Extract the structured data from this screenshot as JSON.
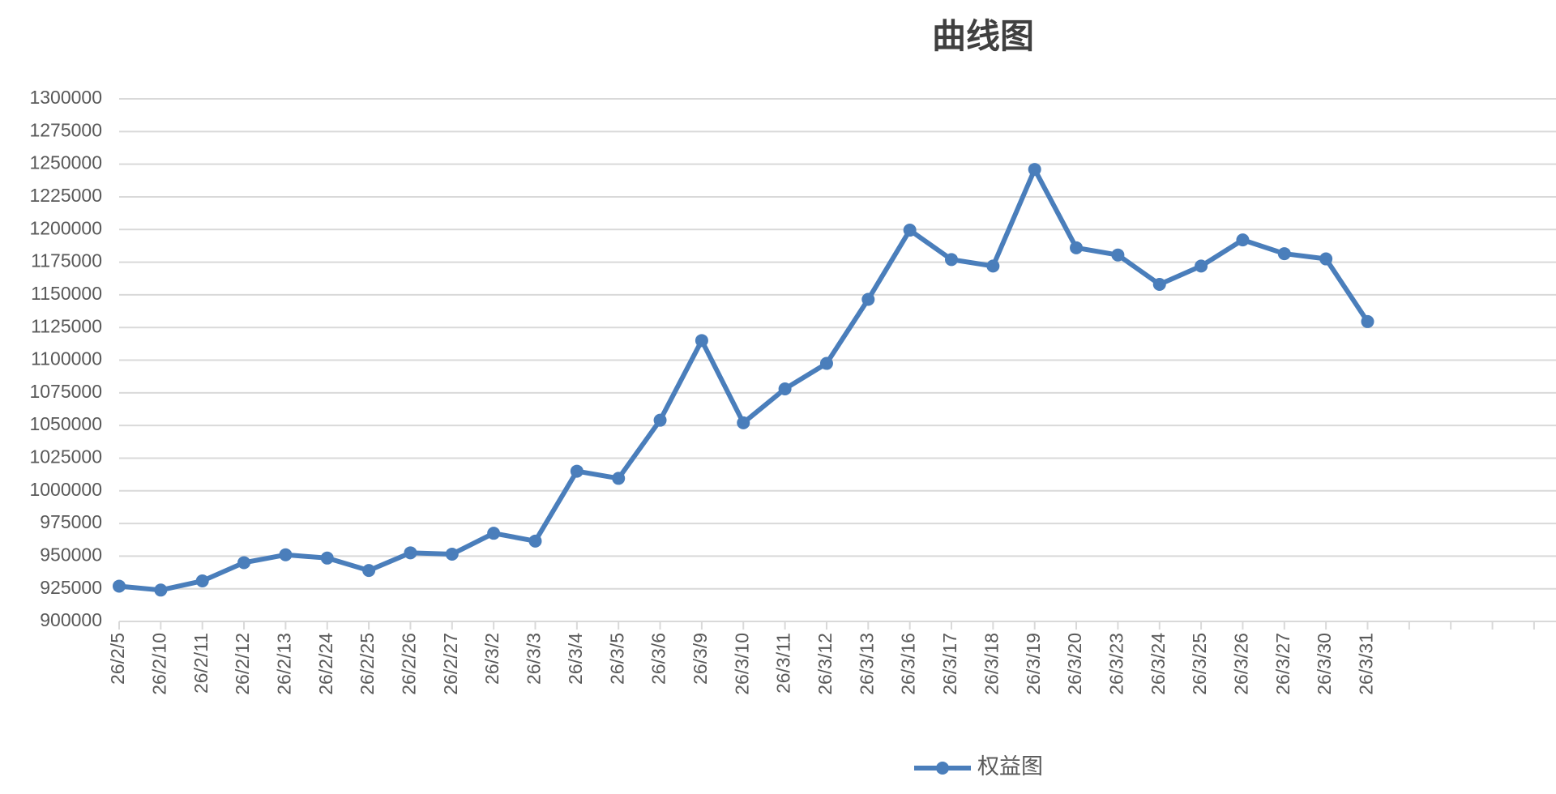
{
  "chart_data": {
    "type": "line",
    "title": "曲线图",
    "categories": [
      "26/2/5",
      "26/2/10",
      "26/2/11",
      "26/2/12",
      "26/2/13",
      "26/2/24",
      "26/2/25",
      "26/2/26",
      "26/2/27",
      "26/3/2",
      "26/3/3",
      "26/3/4",
      "26/3/5",
      "26/3/6",
      "26/3/9",
      "26/3/10",
      "26/3/11",
      "26/3/12",
      "26/3/13",
      "26/3/16",
      "26/3/17",
      "26/3/18",
      "26/3/19",
      "26/3/20",
      "26/3/23",
      "26/3/24",
      "26/3/25",
      "26/3/26",
      "26/3/27",
      "26/3/30",
      "26/3/31",
      null,
      null,
      null,
      null
    ],
    "series": [
      {
        "name": "权益图",
        "color": "#4a7ebb",
        "values": [
          927000,
          924000,
          931000,
          945000,
          951000,
          948500,
          939000,
          952500,
          951500,
          967500,
          961500,
          1015000,
          1009500,
          1054000,
          1115000,
          1052000,
          1078000,
          1097500,
          1146500,
          1199500,
          1177000,
          1172000,
          1246000,
          1186000,
          1180500,
          1158000,
          1172000,
          1192000,
          1181500,
          1177500,
          1129500,
          null,
          null,
          null,
          null
        ]
      }
    ],
    "ylim": [
      900000,
      1300000
    ],
    "yticks": [
      900000,
      925000,
      950000,
      975000,
      1000000,
      1025000,
      1050000,
      1075000,
      1100000,
      1125000,
      1150000,
      1175000,
      1200000,
      1225000,
      1250000,
      1275000,
      1300000
    ],
    "grid": true,
    "legend": "bottom"
  }
}
